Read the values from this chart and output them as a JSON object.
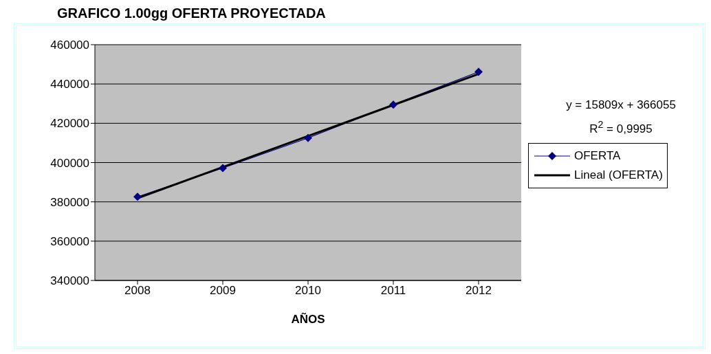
{
  "chart_data": {
    "type": "line",
    "title": "GRAFICO 1.00gg OFERTA PROYECTADA",
    "xlabel": "AÑOS",
    "categories": [
      "2008",
      "2009",
      "2010",
      "2011",
      "2012"
    ],
    "series": [
      {
        "name": "OFERTA",
        "color": "#000080",
        "values": [
          382600,
          397200,
          412500,
          429500,
          446200
        ],
        "marker": "diamond"
      },
      {
        "name": "Lineal (OFERTA)",
        "type": "line",
        "color": "#000000",
        "values": [
          381900,
          397700,
          413500,
          429300,
          445100
        ],
        "marker": "none"
      }
    ],
    "ylim": [
      340000,
      460000
    ],
    "yticks": [
      340000,
      360000,
      380000,
      400000,
      420000,
      440000,
      460000
    ],
    "grid": "y",
    "legend": "right",
    "annotations": [
      "y = 15809x + 366055",
      "R$^{2}$ = 0,9995"
    ]
  }
}
